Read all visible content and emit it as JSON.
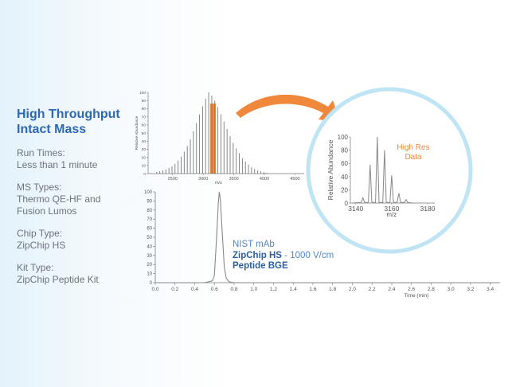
{
  "sidebar": {
    "headline": [
      "High Throughput",
      "Intact Mass"
    ],
    "specs": [
      {
        "label": "Run Times:",
        "value": [
          "Less than 1 minute"
        ]
      },
      {
        "label": "MS Types:",
        "value": [
          "Thermo QE-HF and",
          "Fusion Lumos"
        ]
      },
      {
        "label": "Chip Type:",
        "value": [
          "ZipChip HS"
        ]
      },
      {
        "label": "Kit Type:",
        "value": [
          "ZipChip Peptide Kit"
        ]
      }
    ]
  },
  "annotation": {
    "sample": "NIST mAb",
    "chip_bold": "ZipChip HS",
    "chip_rest": " - 1000 V/cm",
    "bge": "Peptide BGE"
  },
  "colors": {
    "highlight": "#f0883b",
    "circle": "#bfe4f4",
    "headline": "#2d69b0",
    "trace": "#888888"
  },
  "chart_data": [
    {
      "id": "electropherogram",
      "type": "line",
      "xlabel": "Time (min)",
      "ylabel": "",
      "xlim": [
        0.0,
        3.5
      ],
      "ylim": [
        0,
        100
      ],
      "xticks": [
        "0.0",
        "0.2",
        "0.4",
        "0.6",
        "0.8",
        "1.0",
        "1.2",
        "1.4",
        "1.6",
        "1.8",
        "2.0",
        "2.2",
        "2.4",
        "2.6",
        "2.8",
        "3.0",
        "3.2",
        "3.4"
      ],
      "yticks": [
        "0",
        "10",
        "20",
        "30",
        "40",
        "50",
        "60",
        "70",
        "80",
        "90",
        "100"
      ],
      "peak_time": 0.65,
      "peak_height": 100,
      "x": [
        0.0,
        0.5,
        0.58,
        0.6,
        0.62,
        0.64,
        0.65,
        0.66,
        0.68,
        0.7,
        0.72,
        0.75,
        0.8,
        1.0,
        3.5
      ],
      "y": [
        0,
        0,
        2,
        8,
        45,
        88,
        100,
        92,
        55,
        18,
        5,
        1,
        0,
        0,
        0
      ]
    },
    {
      "id": "mass-spectrum",
      "type": "bar",
      "xlabel": "m/z",
      "ylabel": "Relative Abundance",
      "xlim": [
        2100,
        4650
      ],
      "ylim": [
        0,
        100
      ],
      "xticks": [
        "2500",
        "3000",
        "3500",
        "4000",
        "4500"
      ],
      "yticks": [
        "0",
        "10",
        "20",
        "30",
        "40",
        "50",
        "60",
        "70",
        "80",
        "90",
        "100"
      ],
      "highlight_mz": 3160,
      "x": [
        2240,
        2290,
        2340,
        2390,
        2440,
        2490,
        2540,
        2590,
        2640,
        2690,
        2740,
        2790,
        2840,
        2890,
        2940,
        2990,
        3040,
        3090,
        3140,
        3190,
        3240,
        3290,
        3340,
        3390,
        3440,
        3490,
        3540,
        3590,
        3640,
        3690,
        3740,
        3790,
        3840,
        3890,
        3940,
        3990,
        4040
      ],
      "values": [
        2,
        3,
        4,
        5,
        7,
        9,
        12,
        16,
        21,
        27,
        34,
        42,
        52,
        62,
        73,
        83,
        92,
        100,
        96,
        90,
        82,
        73,
        64,
        55,
        46,
        38,
        31,
        25,
        19,
        15,
        11,
        8,
        6,
        4,
        3,
        2,
        1
      ]
    },
    {
      "id": "high-res-zoom",
      "type": "line",
      "title": "High Res Data",
      "xlabel": "m/z",
      "ylabel": "Relative Abundance",
      "xlim": [
        3137,
        3184
      ],
      "ylim": [
        0,
        100
      ],
      "xticks": [
        "3140",
        "3160",
        "3180"
      ],
      "yticks": [
        "0",
        "20",
        "40",
        "60",
        "80",
        "100"
      ],
      "peaks": [
        {
          "x": 3144,
          "y": 8
        },
        {
          "x": 3148,
          "y": 58
        },
        {
          "x": 3152,
          "y": 100
        },
        {
          "x": 3156,
          "y": 80
        },
        {
          "x": 3160,
          "y": 42
        },
        {
          "x": 3164,
          "y": 15
        },
        {
          "x": 3168,
          "y": 5
        }
      ]
    }
  ]
}
